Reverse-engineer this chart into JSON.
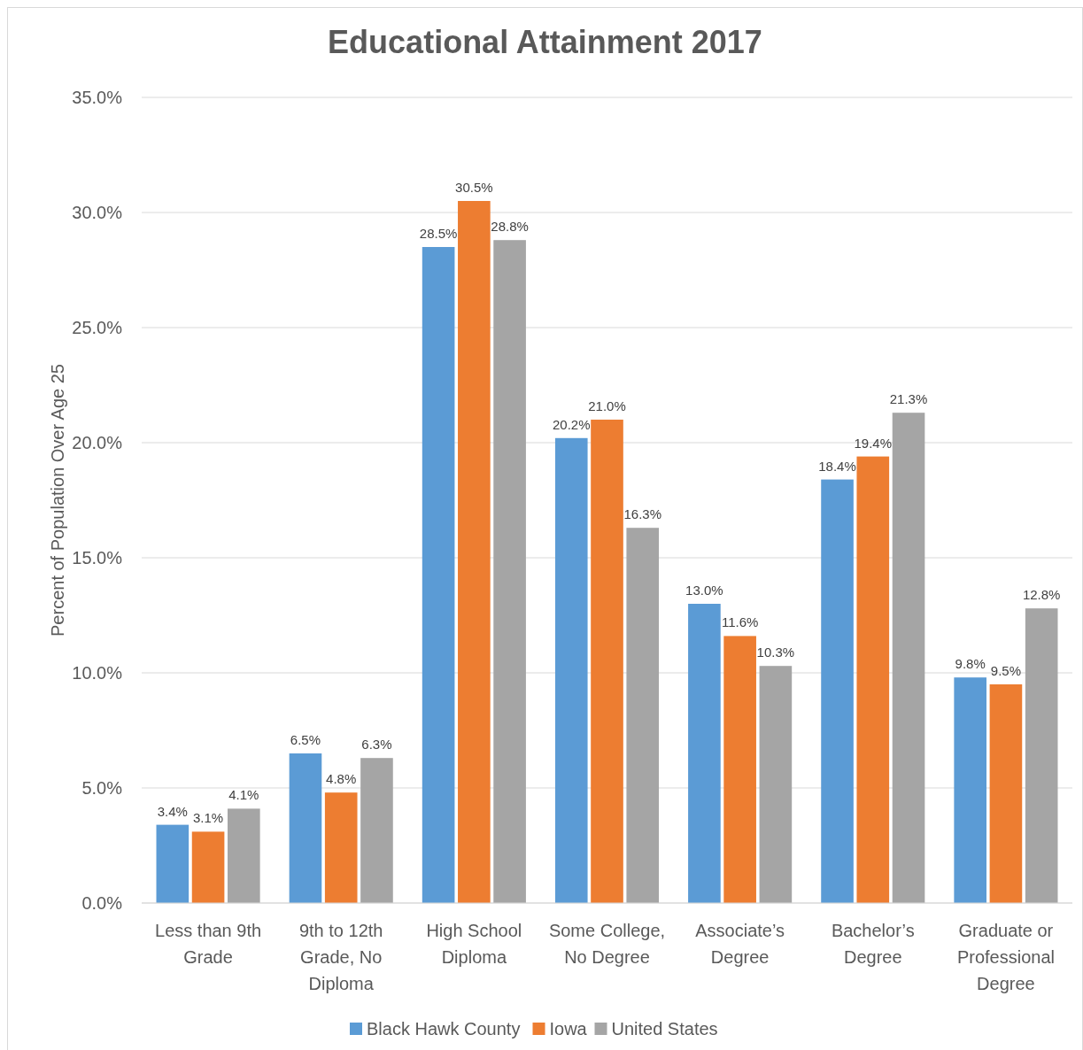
{
  "chart_data": {
    "type": "bar",
    "title": "Educational Attainment 2017",
    "ylabel": "Percent of Population Over Age 25",
    "categories": [
      "Less than 9th Grade",
      "9th to 12th Grade, No Diploma",
      "High School Diploma",
      "Some College, No Degree",
      "Associate’s Degree",
      "Bachelor’s Degree",
      "Graduate or Professional Degree"
    ],
    "series": [
      {
        "name": "Black Hawk County",
        "color": "#5b9bd5",
        "values": [
          3.4,
          6.5,
          28.5,
          20.2,
          13.0,
          18.4,
          9.8
        ],
        "value_labels": [
          "3.4%",
          "6.5%",
          "28.5%",
          "20.2%",
          "13.0%",
          "18.4%",
          "9.8%"
        ]
      },
      {
        "name": "Iowa",
        "color": "#ed7d31",
        "values": [
          3.1,
          4.8,
          30.5,
          21.0,
          11.6,
          19.4,
          9.5
        ],
        "value_labels": [
          "3.1%",
          "4.8%",
          "30.5%",
          "21.0%",
          "11.6%",
          "19.4%",
          "9.5%"
        ]
      },
      {
        "name": "United States",
        "color": "#a5a5a5",
        "values": [
          4.1,
          6.3,
          28.8,
          16.3,
          10.3,
          21.3,
          12.8
        ],
        "value_labels": [
          "4.1%",
          "6.3%",
          "28.8%",
          "16.3%",
          "10.3%",
          "21.3%",
          "12.8%"
        ]
      }
    ],
    "ylim": [
      0,
      35
    ],
    "yticks": [
      {
        "value": 0,
        "label": "0.0%"
      },
      {
        "value": 5,
        "label": "5.0%"
      },
      {
        "value": 10,
        "label": "10.0%"
      },
      {
        "value": 15,
        "label": "15.0%"
      },
      {
        "value": 20,
        "label": "20.0%"
      },
      {
        "value": 25,
        "label": "25.0%"
      },
      {
        "value": 30,
        "label": "30.0%"
      },
      {
        "value": 35,
        "label": "35.0%"
      }
    ],
    "grid": "y",
    "legend": "bottom"
  }
}
